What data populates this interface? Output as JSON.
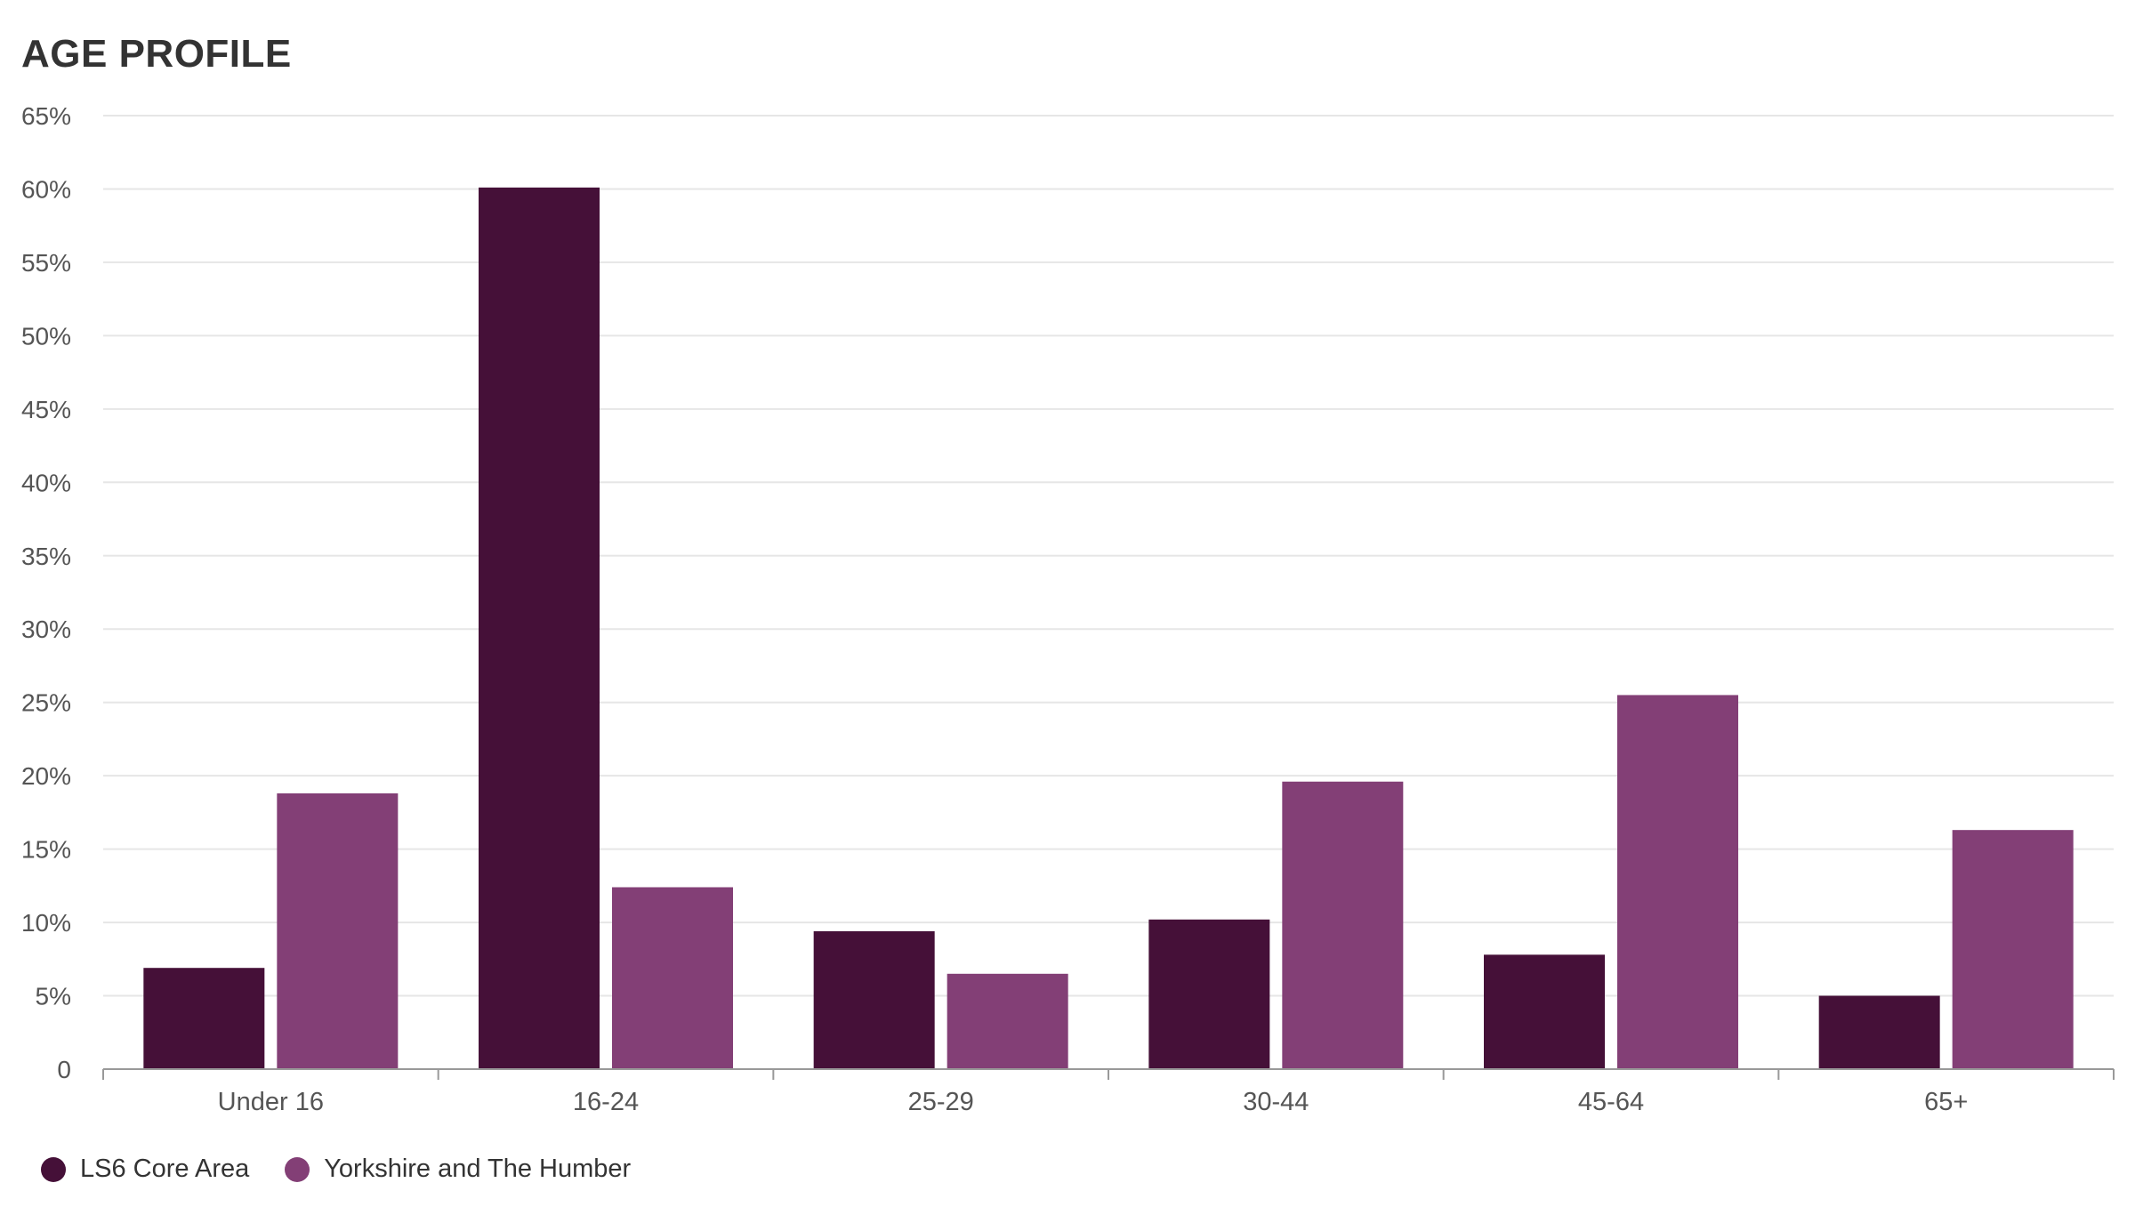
{
  "chart_data": {
    "type": "bar",
    "title": "AGE PROFILE",
    "xlabel": "",
    "ylabel": "",
    "categories": [
      "Under 16",
      "16-24",
      "25-29",
      "30-44",
      "45-64",
      "65+"
    ],
    "series": [
      {
        "name": "LS6 Core Area",
        "color": "#451038",
        "values": [
          6.9,
          60.1,
          9.4,
          10.2,
          7.8,
          5.0
        ]
      },
      {
        "name": "Yorkshire and The Humber",
        "color": "#833f76",
        "values": [
          18.8,
          12.4,
          6.5,
          19.6,
          25.5,
          16.3
        ]
      }
    ],
    "ylim": [
      0,
      65
    ],
    "yticks": [
      0,
      5,
      10,
      15,
      20,
      25,
      30,
      35,
      40,
      45,
      50,
      55,
      60,
      65
    ],
    "ytick_labels": [
      "0",
      "5%",
      "10%",
      "15%",
      "20%",
      "25%",
      "30%",
      "35%",
      "40%",
      "45%",
      "50%",
      "55%",
      "60%",
      "65%"
    ],
    "grid": true,
    "legend_position": "bottom-left"
  },
  "colors": {
    "gridline": "#e6e6e6",
    "axis": "#999999",
    "text": "#555555"
  }
}
